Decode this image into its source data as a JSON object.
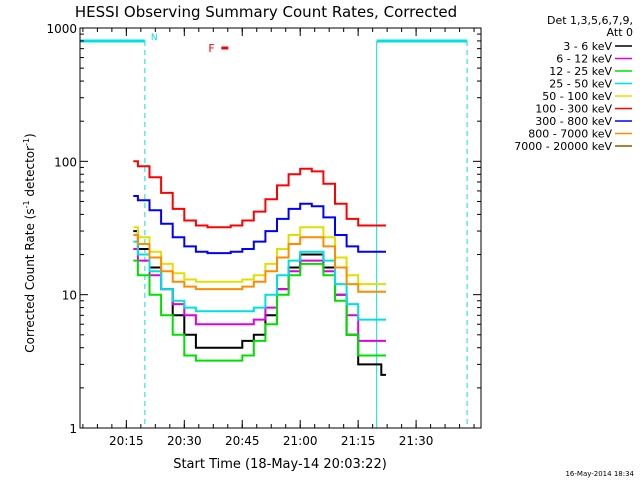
{
  "chart_data": {
    "type": "line",
    "title": "HESSI Observing Summary Count Rates, Corrected",
    "ylabel_main": "Corrected Count Rate (s",
    "ylabel_sup1": "-1",
    "ylabel_mid": " detector",
    "ylabel_sup2": "-1",
    "ylabel_end": ")",
    "xlabel": "Start Time (18-May-14 20:03:22)",
    "x_unit": "minutes",
    "xlim": [
      20.05,
      21.78
    ],
    "ylim": [
      1,
      1000
    ],
    "yscale": "log",
    "yticks": [
      {
        "v": 1000,
        "label": "1000"
      },
      {
        "v": 100,
        "label": "100"
      },
      {
        "v": 10,
        "label": "10"
      },
      {
        "v": 1,
        "label": "1"
      }
    ],
    "xticks": [
      {
        "v": 20.25,
        "label": "20:15"
      },
      {
        "v": 20.5,
        "label": "20:30"
      },
      {
        "v": 20.75,
        "label": "20:45"
      },
      {
        "v": 21.0,
        "label": "21:00"
      },
      {
        "v": 21.25,
        "label": "21:15"
      },
      {
        "v": 21.5,
        "label": "21:30"
      }
    ],
    "legend_header1": "Det 1,3,5,6,7,9,",
    "legend_header2": "Att 0",
    "legend_position": "right",
    "series": [
      {
        "name": "3 - 6 keV",
        "color": "#000000",
        "x": [
          20.28,
          20.3,
          20.35,
          20.4,
          20.45,
          20.5,
          20.55,
          20.6,
          20.65,
          20.7,
          20.75,
          20.8,
          20.85,
          20.9,
          20.95,
          21.0,
          21.05,
          21.1,
          21.15,
          21.2,
          21.25,
          21.3,
          21.35
        ],
        "y": [
          30,
          22,
          16,
          11,
          7,
          5,
          4,
          4,
          4,
          4,
          4.5,
          5,
          7,
          11,
          16,
          20,
          20,
          16,
          10,
          5,
          3,
          3,
          2.5
        ]
      },
      {
        "name": "6 - 12 keV",
        "color": "#e000e0",
        "x": [
          20.28,
          20.3,
          20.35,
          20.4,
          20.45,
          20.5,
          20.55,
          20.6,
          20.65,
          20.7,
          20.75,
          20.8,
          20.85,
          20.9,
          20.95,
          21.0,
          21.05,
          21.1,
          21.15,
          21.2,
          21.25,
          21.3,
          21.35
        ],
        "y": [
          22,
          18,
          14,
          11,
          8.5,
          7,
          6,
          6,
          6,
          6,
          6,
          6.5,
          8,
          11,
          15,
          18,
          18,
          15,
          10,
          7,
          4.5,
          4.5,
          4.5
        ]
      },
      {
        "name": "12 - 25 keV",
        "color": "#00e000",
        "x": [
          20.28,
          20.3,
          20.35,
          20.4,
          20.45,
          20.5,
          20.55,
          20.6,
          20.65,
          20.7,
          20.75,
          20.8,
          20.85,
          20.9,
          20.95,
          21.0,
          21.05,
          21.1,
          21.15,
          21.2,
          21.25,
          21.3,
          21.35
        ],
        "y": [
          18,
          14,
          10,
          7,
          5,
          3.5,
          3.2,
          3.2,
          3.2,
          3.2,
          3.5,
          4.5,
          6,
          10,
          14,
          17,
          17,
          14,
          9,
          5,
          3.5,
          3.5,
          3.5
        ]
      },
      {
        "name": "25 - 50 keV",
        "color": "#00e0e0",
        "x": [
          20.28,
          20.3,
          20.35,
          20.4,
          20.45,
          20.5,
          20.55,
          20.6,
          20.65,
          20.7,
          20.75,
          20.8,
          20.85,
          20.9,
          20.95,
          21.0,
          21.05,
          21.1,
          21.15,
          21.2,
          21.25,
          21.3,
          21.35
        ],
        "y": [
          25,
          20,
          15,
          11,
          9,
          8,
          7.5,
          7.5,
          7.5,
          7.5,
          7.5,
          8,
          10,
          14,
          18,
          21,
          21,
          18,
          12,
          8.5,
          6.5,
          6.5,
          6.5
        ]
      },
      {
        "name": "50 - 100 keV",
        "color": "#e0e000",
        "x": [
          20.28,
          20.3,
          20.35,
          20.4,
          20.45,
          20.5,
          20.55,
          20.6,
          20.65,
          20.7,
          20.75,
          20.8,
          20.85,
          20.9,
          20.95,
          21.0,
          21.05,
          21.1,
          21.15,
          21.2,
          21.25,
          21.3,
          21.35
        ],
        "y": [
          32,
          27,
          21,
          17,
          14.5,
          13,
          12.5,
          12.5,
          12.5,
          12.5,
          13,
          14,
          17,
          22,
          28,
          32,
          32,
          27,
          19,
          14,
          12,
          12,
          12
        ]
      },
      {
        "name": "100 - 300 keV",
        "color": "#ff0000",
        "x": [
          20.28,
          20.3,
          20.35,
          20.4,
          20.45,
          20.5,
          20.55,
          20.6,
          20.65,
          20.7,
          20.75,
          20.8,
          20.85,
          20.9,
          20.95,
          21.0,
          21.05,
          21.1,
          21.15,
          21.2,
          21.25,
          21.3,
          21.35
        ],
        "y": [
          100,
          92,
          76,
          58,
          44,
          36,
          33,
          32,
          32,
          33,
          36,
          42,
          52,
          66,
          80,
          88,
          84,
          68,
          48,
          37,
          33,
          33,
          33
        ]
      },
      {
        "name": "300 - 800 keV",
        "color": "#0000ff",
        "x": [
          20.28,
          20.3,
          20.35,
          20.4,
          20.45,
          20.5,
          20.55,
          20.6,
          20.65,
          20.7,
          20.75,
          20.8,
          20.85,
          20.9,
          20.95,
          21.0,
          21.05,
          21.1,
          21.15,
          21.2,
          21.25,
          21.3,
          21.35
        ],
        "y": [
          55,
          51,
          43,
          34,
          27,
          23,
          21,
          20.5,
          20.5,
          21,
          22,
          25,
          30,
          37,
          44,
          48,
          46,
          38,
          28,
          23,
          21,
          21,
          21
        ]
      },
      {
        "name": "800 - 7000 keV",
        "color": "#ff8c00",
        "x": [
          20.28,
          20.3,
          20.35,
          20.4,
          20.45,
          20.5,
          20.55,
          20.6,
          20.65,
          20.7,
          20.75,
          20.8,
          20.85,
          20.9,
          20.95,
          21.0,
          21.05,
          21.1,
          21.15,
          21.2,
          21.25,
          21.3,
          21.35
        ],
        "y": [
          28,
          24,
          19,
          15,
          12.5,
          11.5,
          11,
          11,
          11,
          11,
          11.5,
          12.5,
          15,
          19,
          24,
          27,
          27,
          23,
          16,
          12,
          10.5,
          10.5,
          10.5
        ]
      },
      {
        "name": "7000 - 20000 keV",
        "color": "#8b5a00",
        "x": [],
        "y": []
      }
    ],
    "annotations": {
      "night_marker": "N",
      "flare_marker": "F",
      "night_spans": [
        [
          20.05,
          20.33
        ],
        [
          21.33,
          21.72
        ]
      ],
      "dashed_lines": [
        20.33,
        21.72
      ],
      "solid_lines": [
        20.05,
        21.33
      ],
      "flare_span": [
        20.66,
        20.69
      ]
    }
  },
  "timestamp": "16-May-2014 18:34"
}
